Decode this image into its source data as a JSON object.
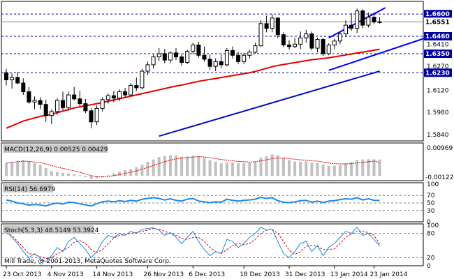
{
  "colors": {
    "background": "#ffffff",
    "candle": "#000000",
    "ma_red": "#e00000",
    "ma_blue": "#0010c0",
    "channel": "#0000ff",
    "level_line": "#0000a0",
    "macd_hist": "#c0c0c0",
    "macd_signal": "#e00000",
    "rsi": "#1e88e5",
    "stoch_main": "#1e88e5",
    "stoch_signal": "#e00000"
  },
  "price_panel": {
    "current_price": "1.6551",
    "level_labels": [
      "1.6600",
      "1.6460",
      "1.6350",
      "1.6230"
    ],
    "axis_labels": [
      "1.6410",
      "1.6270",
      "1.6120",
      "1.5980",
      "1.5840"
    ]
  },
  "macd_panel": {
    "label": "MACD(12,26,9) 0.00525 0.00429",
    "axis_labels": [
      "0.00969",
      "-0.00122"
    ]
  },
  "rsi_panel": {
    "label": "RSI(14) 56.6979",
    "axis_labels": [
      "100",
      "70",
      "50",
      "30",
      "0"
    ]
  },
  "stoch_panel": {
    "label": "Stoch(5,3,3) 48.5149 53.3924",
    "axis_labels": [
      "100",
      "80",
      "20",
      "0"
    ]
  },
  "copyright": "Mill Trade, @ 2001-2013, MetaQuotes Software Corp.",
  "date_labels": [
    "23 Oct 2013",
    "4 Nov 2013",
    "14 Nov 2013",
    "26 Nov 2013",
    "6 Dec 2013",
    "18 Dec 2013",
    "31 Dec 2013",
    "13 Jan 2014",
    "23 Jan 2014"
  ],
  "chart_data": {
    "type": "candlestick",
    "candles": [
      [
        1.623,
        1.6255,
        1.615,
        1.6185
      ],
      [
        1.6185,
        1.6225,
        1.613,
        1.62
      ],
      [
        1.62,
        1.6235,
        1.6155,
        1.6165
      ],
      [
        1.6165,
        1.6195,
        1.609,
        1.611
      ],
      [
        1.611,
        1.614,
        1.6035,
        1.6045
      ],
      [
        1.6045,
        1.608,
        1.6,
        1.6055
      ],
      [
        1.6055,
        1.6075,
        1.6,
        1.603
      ],
      [
        1.603,
        1.606,
        1.592,
        1.596
      ],
      [
        1.596,
        1.6,
        1.5905,
        1.5985
      ],
      [
        1.5985,
        1.607,
        1.5965,
        1.6055
      ],
      [
        1.6055,
        1.611,
        1.5995,
        1.601
      ],
      [
        1.601,
        1.611,
        1.599,
        1.609
      ],
      [
        1.609,
        1.614,
        1.6055,
        1.6065
      ],
      [
        1.6065,
        1.6115,
        1.602,
        1.6035
      ],
      [
        1.6035,
        1.6065,
        1.5975,
        1.599
      ],
      [
        1.599,
        1.6005,
        1.588,
        1.592
      ],
      [
        1.592,
        1.6025,
        1.59,
        1.6005
      ],
      [
        1.6005,
        1.6075,
        1.5985,
        1.606
      ],
      [
        1.606,
        1.61,
        1.6035,
        1.6085
      ],
      [
        1.6085,
        1.6115,
        1.6045,
        1.607
      ],
      [
        1.607,
        1.6125,
        1.605,
        1.611
      ],
      [
        1.611,
        1.6135,
        1.6075,
        1.609
      ],
      [
        1.609,
        1.6165,
        1.6085,
        1.615
      ],
      [
        1.615,
        1.62,
        1.6115,
        1.6135
      ],
      [
        1.6135,
        1.6255,
        1.6125,
        1.624
      ],
      [
        1.624,
        1.63,
        1.6215,
        1.628
      ],
      [
        1.628,
        1.6345,
        1.6255,
        1.633
      ],
      [
        1.633,
        1.6385,
        1.6305,
        1.635
      ],
      [
        1.635,
        1.638,
        1.629,
        1.631
      ],
      [
        1.631,
        1.6365,
        1.629,
        1.6355
      ],
      [
        1.6355,
        1.6385,
        1.631,
        1.633
      ],
      [
        1.633,
        1.6345,
        1.6275,
        1.6295
      ],
      [
        1.6295,
        1.6375,
        1.6285,
        1.6365
      ],
      [
        1.6365,
        1.642,
        1.6345,
        1.6405
      ],
      [
        1.6405,
        1.6425,
        1.6325,
        1.634
      ],
      [
        1.634,
        1.6395,
        1.63,
        1.6315
      ],
      [
        1.6315,
        1.6345,
        1.625,
        1.627
      ],
      [
        1.627,
        1.632,
        1.624,
        1.63
      ],
      [
        1.63,
        1.6345,
        1.626,
        1.628
      ],
      [
        1.628,
        1.6385,
        1.627,
        1.637
      ],
      [
        1.637,
        1.6395,
        1.632,
        1.634
      ],
      [
        1.634,
        1.636,
        1.6285,
        1.63
      ],
      [
        1.63,
        1.6355,
        1.6285,
        1.634
      ],
      [
        1.634,
        1.6375,
        1.632,
        1.636
      ],
      [
        1.636,
        1.642,
        1.635,
        1.64
      ],
      [
        1.64,
        1.656,
        1.6395,
        1.654
      ],
      [
        1.654,
        1.659,
        1.6485,
        1.651
      ],
      [
        1.651,
        1.66,
        1.6485,
        1.6575
      ],
      [
        1.6575,
        1.658,
        1.645,
        1.647
      ],
      [
        1.647,
        1.6485,
        1.639,
        1.6405
      ],
      [
        1.6405,
        1.6435,
        1.6375,
        1.6395
      ],
      [
        1.6395,
        1.645,
        1.6385,
        1.641
      ],
      [
        1.641,
        1.649,
        1.638,
        1.645
      ],
      [
        1.645,
        1.65,
        1.642,
        1.6475
      ],
      [
        1.6475,
        1.649,
        1.637,
        1.6385
      ],
      [
        1.6385,
        1.645,
        1.636,
        1.644
      ],
      [
        1.644,
        1.645,
        1.6335,
        1.635
      ],
      [
        1.635,
        1.6415,
        1.634,
        1.6405
      ],
      [
        1.6405,
        1.6445,
        1.638,
        1.643
      ],
      [
        1.643,
        1.6485,
        1.641,
        1.6475
      ],
      [
        1.6475,
        1.656,
        1.6455,
        1.653
      ],
      [
        1.653,
        1.6605,
        1.6495,
        1.651
      ],
      [
        1.651,
        1.6635,
        1.648,
        1.662
      ],
      [
        1.662,
        1.663,
        1.651,
        1.653
      ],
      [
        1.653,
        1.661,
        1.6515,
        1.658
      ],
      [
        1.658,
        1.661,
        1.6535,
        1.655
      ],
      [
        1.655,
        1.658,
        1.654,
        1.6551
      ]
    ],
    "ma_red": [
      1.588,
      1.5895,
      1.591,
      1.5925,
      1.5935,
      1.5945,
      1.5955,
      1.596,
      1.5968,
      1.5978,
      1.5988,
      1.5998,
      1.6008,
      1.6015,
      1.6022,
      1.6028,
      1.6035,
      1.6042,
      1.605,
      1.6058,
      1.6066,
      1.6074,
      1.6082,
      1.609,
      1.6098,
      1.6106,
      1.6114,
      1.6122,
      1.613,
      1.6138,
      1.6146,
      1.6152,
      1.616,
      1.6168,
      1.6176,
      1.6182,
      1.6188,
      1.6194,
      1.62,
      1.6206,
      1.6212,
      1.6218,
      1.6224,
      1.623,
      1.6238,
      1.6248,
      1.6258,
      1.6268,
      1.6276,
      1.6282,
      1.6288,
      1.6294,
      1.63,
      1.6306,
      1.6312,
      1.6316,
      1.632,
      1.6324,
      1.633,
      1.6336,
      1.6342,
      1.6348,
      1.6355,
      1.636,
      1.6366,
      1.6372,
      1.6378
    ],
    "ma_blue_segment": [
      [
        27,
        1.583
      ],
      [
        66,
        1.624
      ]
    ],
    "channel_upper": [
      [
        57,
        1.645
      ],
      [
        67,
        1.664
      ]
    ],
    "channel_lower": [
      [
        57,
        1.6245
      ],
      [
        75,
        1.646
      ]
    ],
    "level_values": [
      1.66,
      1.646,
      1.635,
      1.623
    ],
    "macd_hist": [
      0.004,
      0.0045,
      0.0048,
      0.005,
      0.0045,
      0.004,
      0.0035,
      0.0025,
      0.0015,
      0.0012,
      0.001,
      0.0008,
      0.0005,
      0.0002,
      -0.0004,
      -0.001,
      -0.0008,
      -0.0005,
      0.0002,
      0.0008,
      0.0013,
      0.0018,
      0.0022,
      0.0028,
      0.0036,
      0.0045,
      0.0052,
      0.006,
      0.0063,
      0.0066,
      0.0065,
      0.0061,
      0.0062,
      0.0064,
      0.0062,
      0.0057,
      0.005,
      0.0045,
      0.004,
      0.0042,
      0.0042,
      0.004,
      0.004,
      0.0042,
      0.0046,
      0.0058,
      0.0062,
      0.0068,
      0.0066,
      0.0058,
      0.005,
      0.0046,
      0.0045,
      0.0046,
      0.0042,
      0.0041,
      0.0036,
      0.0032,
      0.0032,
      0.0034,
      0.004,
      0.0044,
      0.005,
      0.0052,
      0.0053,
      0.0053,
      0.0052
    ],
    "macd_signal": [
      0.004,
      0.0043,
      0.0045,
      0.0047,
      0.0046,
      0.0044,
      0.0042,
      0.0038,
      0.0033,
      0.0028,
      0.0024,
      0.002,
      0.0016,
      0.0012,
      0.0006,
      0.0001,
      -0.0002,
      -0.0003,
      -0.0002,
      0.0001,
      0.0004,
      0.0008,
      0.0012,
      0.0016,
      0.0021,
      0.0027,
      0.0033,
      0.0039,
      0.0045,
      0.005,
      0.0054,
      0.0057,
      0.0058,
      0.006,
      0.0061,
      0.006,
      0.0058,
      0.0055,
      0.0052,
      0.005,
      0.0048,
      0.0046,
      0.0045,
      0.0044,
      0.0045,
      0.0048,
      0.0051,
      0.0055,
      0.0057,
      0.0057,
      0.0055,
      0.0053,
      0.0051,
      0.005,
      0.0048,
      0.0047,
      0.0044,
      0.0041,
      0.0039,
      0.0038,
      0.0038,
      0.0039,
      0.0041,
      0.0043,
      0.0045,
      0.0047,
      0.0043
    ],
    "rsi": [
      58,
      55,
      50,
      48,
      44,
      46,
      45,
      42,
      47,
      50,
      47,
      52,
      51,
      48,
      45,
      42,
      48,
      53,
      55,
      53,
      56,
      54,
      57,
      55,
      60,
      62,
      64,
      62,
      58,
      61,
      57,
      55,
      60,
      62,
      55,
      53,
      51,
      53,
      52,
      60,
      57,
      55,
      57,
      58,
      60,
      65,
      62,
      64,
      56,
      52,
      51,
      53,
      56,
      57,
      52,
      55,
      51,
      55,
      56,
      59,
      61,
      60,
      64,
      58,
      61,
      57,
      56.7
    ],
    "stoch_k": [
      85,
      70,
      55,
      35,
      20,
      30,
      18,
      10,
      25,
      45,
      35,
      60,
      70,
      55,
      40,
      20,
      35,
      60,
      75,
      70,
      80,
      75,
      85,
      80,
      90,
      92,
      94,
      88,
      75,
      82,
      70,
      55,
      70,
      85,
      60,
      40,
      25,
      35,
      30,
      65,
      60,
      45,
      55,
      70,
      80,
      95,
      88,
      90,
      60,
      30,
      20,
      35,
      55,
      60,
      35,
      50,
      25,
      45,
      55,
      70,
      85,
      80,
      95,
      75,
      80,
      65,
      48.5
    ],
    "stoch_d": [
      80,
      75,
      60,
      45,
      30,
      28,
      22,
      18,
      20,
      30,
      38,
      45,
      58,
      62,
      55,
      40,
      32,
      40,
      55,
      68,
      75,
      77,
      80,
      82,
      85,
      88,
      92,
      90,
      85,
      80,
      75,
      68,
      65,
      70,
      70,
      60,
      45,
      35,
      30,
      40,
      50,
      55,
      52,
      55,
      65,
      80,
      88,
      90,
      80,
      60,
      38,
      28,
      35,
      48,
      50,
      48,
      40,
      40,
      42,
      55,
      70,
      78,
      85,
      85,
      82,
      75,
      53.4
    ]
  }
}
